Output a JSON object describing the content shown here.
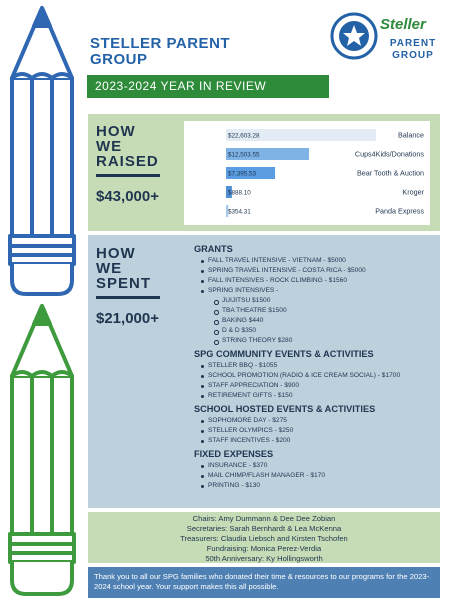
{
  "header": {
    "title": "STELLER PARENT GROUP",
    "banner": "2023-2024 YEAR IN REVIEW",
    "logo_name": "Steller",
    "logo_subtitle": "PARENT GROUP"
  },
  "raised": {
    "heading": [
      "HOW",
      "WE",
      "RAISED"
    ],
    "total": "$43,000+"
  },
  "chart_data": {
    "type": "bar",
    "orientation": "horizontal",
    "categories": [
      "Balance",
      "Cups4Kids/Donations",
      "Bear Tooth & Auction",
      "Kroger",
      "Panda Express"
    ],
    "values": [
      22603.28,
      12503.55,
      7395.53,
      888.1,
      354.31
    ],
    "value_labels": [
      "$22,603.28",
      "$12,503.55",
      "$7,395.53",
      "$888.10",
      "$354.31"
    ],
    "colors": [
      "#e3ecf5",
      "#7fb3e6",
      "#5b9de2",
      "#4f8fd6",
      "#a8c9ec"
    ]
  },
  "spent": {
    "heading": [
      "HOW",
      "WE",
      "SPENT"
    ],
    "total": "$21,000+",
    "sections": [
      {
        "title": "GRANTS",
        "items": [
          {
            "text": "FALL TRAVEL INTENSIVE - VIETNAM - $5000"
          },
          {
            "text": "SPRING TRAVEL INTENSIVE - COSTA RICA - $5000"
          },
          {
            "text": "FALL INTENSIVES - ROCK CLIMBING - $1560"
          },
          {
            "text": "SPRING INTENSIVES -",
            "subitems": [
              "JUIJITSU $1500",
              "TBA THEATRE $1500",
              "BAKING $440",
              "D & D $350",
              "STRING THEORY $280"
            ]
          }
        ]
      },
      {
        "title": "SPG COMMUNITY EVENTS & ACTIVITIES",
        "items": [
          {
            "text": "STELLER BBQ - $1055"
          },
          {
            "text": "SCHOOL PROMOTION (RADIO & ICE CREAM SOCIAL) - $1700"
          },
          {
            "text": "STAFF APPRECIATION - $900"
          },
          {
            "text": "RETIREMENT GIFTS - $150"
          }
        ]
      },
      {
        "title": "SCHOOL HOSTED EVENTS & ACTIVITIES",
        "items": [
          {
            "text": "SOPHOMORE DAY - $275"
          },
          {
            "text": "STELLER OLYMPICS - $250"
          },
          {
            "text": "STAFF INCENTIVES - $200"
          }
        ]
      },
      {
        "title": "FIXED EXPENSES",
        "items": [
          {
            "text": "INSURANCE - $370"
          },
          {
            "text": "MAIL CHIMP/FLASH MANAGER - $170"
          },
          {
            "text": "PRINTING - $130"
          }
        ]
      }
    ]
  },
  "credits": [
    "Chairs: Amy Dummann & Dee Dee Zobian",
    "Secretaries: Sarah Bernhardt & Lea McKenna",
    "Treasurers: Claudia Liebsch and Kirsten Tschofen",
    "Fundraising: Monica Perez-Verdia",
    "50th Anniversary: Ky Hollingsworth"
  ],
  "footer": "Thank you to all our SPG families who donated their time & resources to our programs for the 2023-2024 school year. Your support makes this all possible."
}
